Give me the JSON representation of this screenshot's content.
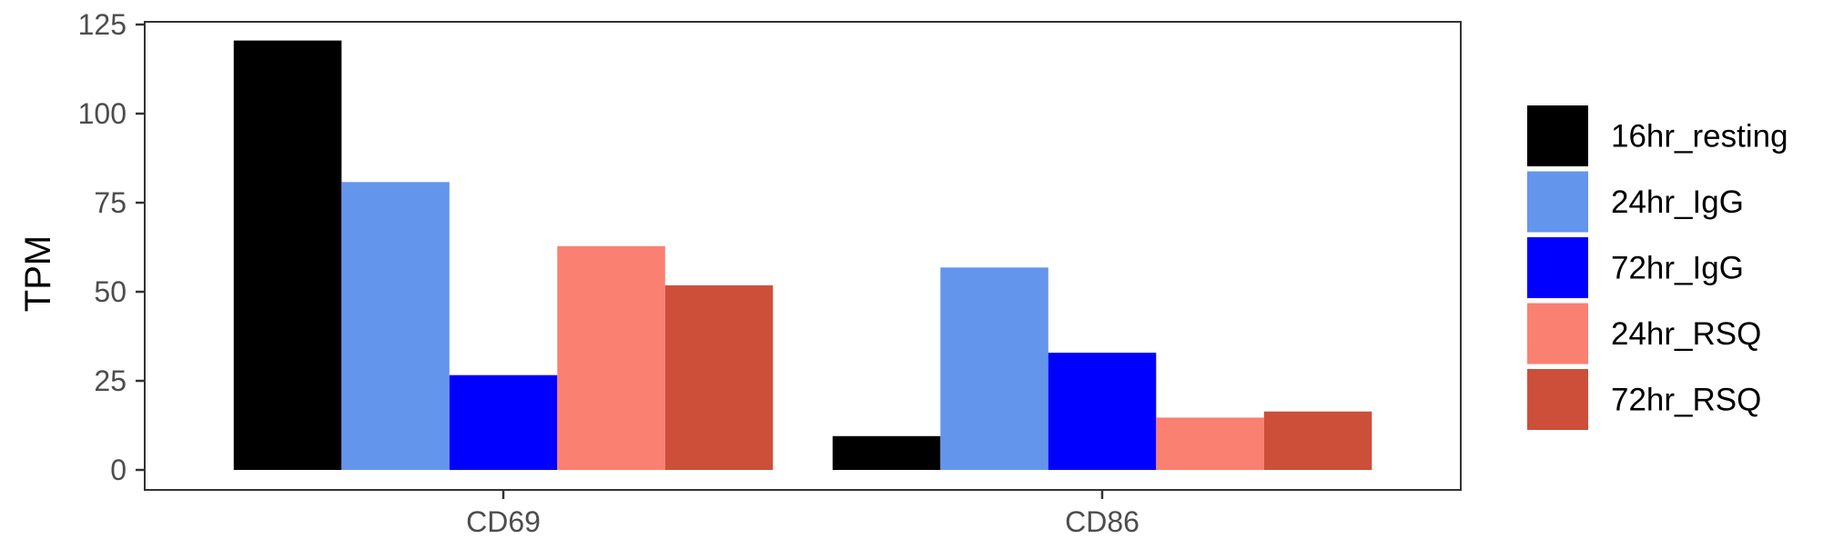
{
  "chart_data": {
    "type": "bar",
    "categories": [
      "CD69",
      "CD86"
    ],
    "series": [
      {
        "name": "16hr_resting",
        "color": "#000000",
        "values": [
          120.5,
          9.5
        ]
      },
      {
        "name": "24hr_IgG",
        "color": "#6495ED",
        "values": [
          80.8,
          56.8
        ]
      },
      {
        "name": "72hr_IgG",
        "color": "#0000FF",
        "values": [
          26.6,
          32.9
        ]
      },
      {
        "name": "24hr_RSQ",
        "color": "#FA8072",
        "values": [
          62.8,
          14.7
        ]
      },
      {
        "name": "72hr_RSQ",
        "color": "#CD4F39",
        "values": [
          51.8,
          16.4
        ]
      }
    ],
    "xlabel": "",
    "ylabel": "TPM",
    "ylim": [
      0,
      125
    ],
    "yticks": [
      0,
      25,
      50,
      75,
      100,
      125
    ],
    "grid": false,
    "legend_position": "right",
    "panel_border": true
  }
}
